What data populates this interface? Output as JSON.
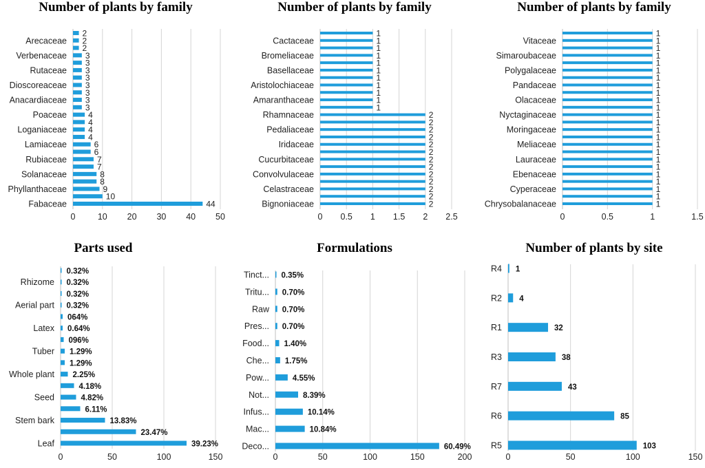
{
  "chart_data": [
    {
      "type": "bar",
      "orientation": "horizontal",
      "title": "Number of plants by family",
      "xlim": [
        0,
        50
      ],
      "xticks": [
        "0",
        "10",
        "20",
        "30",
        "40",
        "50"
      ],
      "categories": [
        "",
        "Arecaceae",
        "",
        "Verbenaceae",
        "",
        "Rutaceae",
        "",
        "Dioscoreaceae",
        "",
        "Anacardiaceae",
        "",
        "Poaceae",
        "",
        "Loganiaceae",
        "",
        "Lamiaceae",
        "",
        "Rubiaceae",
        "",
        "Solanaceae",
        "",
        "Phyllanthaceae",
        "",
        "Fabaceae"
      ],
      "values": [
        2,
        2,
        2,
        3,
        3,
        3,
        3,
        3,
        3,
        3,
        3,
        4,
        4,
        4,
        4,
        6,
        6,
        7,
        7,
        8,
        8,
        9,
        10,
        44
      ],
      "labels": [
        "2",
        "2",
        "2",
        "3",
        "3",
        "3",
        "3",
        "3",
        "3",
        "3",
        "3",
        "4",
        "4",
        "4",
        "4",
        "6",
        "6",
        "7",
        "7",
        "8",
        "8",
        "9",
        "10",
        "44"
      ],
      "label_style": "plain"
    },
    {
      "type": "bar",
      "orientation": "horizontal",
      "title": "Number of plants by family",
      "xlim": [
        0,
        2.5
      ],
      "xticks": [
        "0",
        "0.5",
        "1",
        "1.5",
        "2",
        "2.5"
      ],
      "categories": [
        "",
        "Cactaceae",
        "",
        "Bromeliaceae",
        "",
        "Basellaceae",
        "",
        "Aristolochiaceae",
        "",
        "Amaranthaceae",
        "",
        "Rhamnaceae",
        "",
        "Pedaliaceae",
        "",
        "Iridaceae",
        "",
        "Cucurbitaceae",
        "",
        "Convolvulaceae",
        "",
        "Celastraceae",
        "",
        "Bignoniaceae"
      ],
      "values": [
        1,
        1,
        1,
        1,
        1,
        1,
        1,
        1,
        1,
        1,
        1,
        2,
        2,
        2,
        2,
        2,
        2,
        2,
        2,
        2,
        2,
        2,
        2,
        2
      ],
      "labels": [
        "1",
        "1",
        "1",
        "1",
        "1",
        "1",
        "1",
        "1",
        "1",
        "1",
        "1",
        "2",
        "2",
        "2",
        "2",
        "2",
        "2",
        "2",
        "2",
        "2",
        "2",
        "2",
        "2",
        "2"
      ],
      "label_style": "plain"
    },
    {
      "type": "bar",
      "orientation": "horizontal",
      "title": "Number of plants by family",
      "xlim": [
        0,
        1.5
      ],
      "xticks": [
        "0",
        "0.5",
        "1",
        "1.5"
      ],
      "categories": [
        "",
        "Vitaceae",
        "",
        "Simaroubaceae",
        "",
        "Polygalaceae",
        "",
        "Pandaceae",
        "",
        "Olacaceae",
        "",
        "Nyctaginaceae",
        "",
        "Moringaceae",
        "",
        "Meliaceae",
        "",
        "Lauraceae",
        "",
        "Ebenaceae",
        "",
        "Cyperaceae",
        "",
        "Chrysobalanaceae"
      ],
      "values": [
        1,
        1,
        1,
        1,
        1,
        1,
        1,
        1,
        1,
        1,
        1,
        1,
        1,
        1,
        1,
        1,
        1,
        1,
        1,
        1,
        1,
        1,
        1,
        1
      ],
      "labels": [
        "1",
        "1",
        "1",
        "1",
        "1",
        "1",
        "1",
        "1",
        "1",
        "1",
        "1",
        "1",
        "1",
        "1",
        "1",
        "1",
        "1",
        "1",
        "1",
        "1",
        "1",
        "1",
        "1",
        "1"
      ],
      "label_style": "plain"
    },
    {
      "type": "bar",
      "orientation": "horizontal",
      "title": "Parts used",
      "xlim": [
        0,
        150
      ],
      "xticks": [
        "0",
        "50",
        "100",
        "150"
      ],
      "categories": [
        "",
        "Rhizome",
        "",
        "Aerial part",
        "",
        "Latex",
        "",
        "Tuber",
        "",
        "Whole plant",
        "",
        "Seed",
        "",
        "Stem bark",
        "",
        "Leaf"
      ],
      "values": [
        1,
        1,
        1,
        1,
        2,
        2,
        3,
        4,
        4,
        7,
        13,
        15,
        19,
        43,
        73,
        122
      ],
      "labels": [
        "0.32%",
        "0.32%",
        "0.32%",
        "0.32%",
        "064%",
        "0.64%",
        "096%",
        "1.29%",
        "1.29%",
        "2.25%",
        "4.18%",
        "4.82%",
        "6.11%",
        "13.83%",
        "23.47%",
        "39.23%"
      ],
      "label_style": "bold"
    },
    {
      "type": "bar",
      "orientation": "horizontal",
      "title": "Formulations",
      "xlim": [
        0,
        200
      ],
      "xticks": [
        "0",
        "50",
        "100",
        "150",
        "200"
      ],
      "categories": [
        "Tinct...",
        "Tritu...",
        "Raw",
        "Pres...",
        "Food...",
        "Che...",
        "Pow...",
        "Not...",
        "Infus...",
        "Mac...",
        "Deco..."
      ],
      "values": [
        1,
        2,
        2,
        2,
        4,
        5,
        13,
        24,
        29,
        31,
        173
      ],
      "labels": [
        "0.35%",
        "0.70%",
        "0.70%",
        "0.70%",
        "1.40%",
        "1.75%",
        "4.55%",
        "8.39%",
        "10.14%",
        "10.84%",
        "60.49%"
      ],
      "label_style": "bold"
    },
    {
      "type": "bar",
      "orientation": "horizontal",
      "title": "Number of plants by site",
      "xlim": [
        0,
        150
      ],
      "xticks": [
        "0",
        "50",
        "100",
        "150"
      ],
      "categories": [
        "R4",
        "R2",
        "R1",
        "R3",
        "R7",
        "R6",
        "R5"
      ],
      "values": [
        1,
        4,
        32,
        38,
        43,
        85,
        103
      ],
      "labels": [
        "1",
        "4",
        "32",
        "38",
        "43",
        "85",
        "103"
      ],
      "label_style": "bold"
    }
  ]
}
